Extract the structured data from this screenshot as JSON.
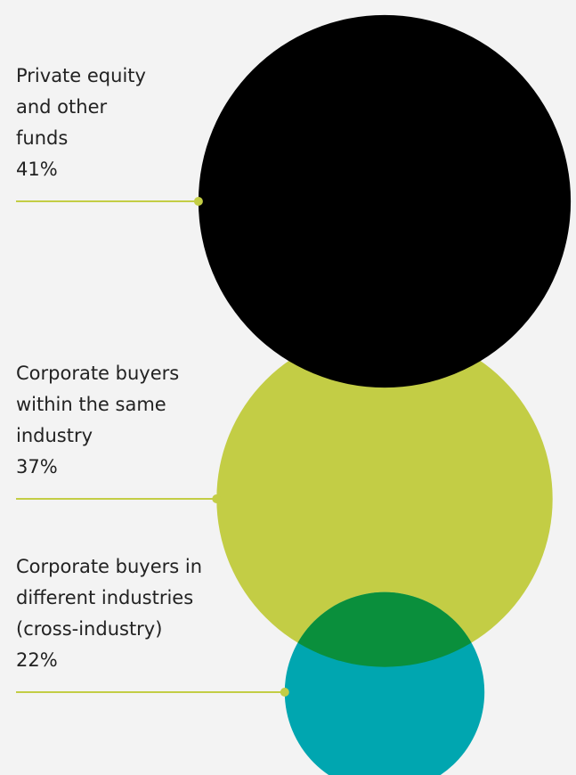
{
  "chart_data": {
    "type": "bubble",
    "categories": [
      [
        "Private equity",
        "and other",
        "funds"
      ],
      [
        "Corporate buyers",
        "within the same",
        "industry"
      ],
      [
        "Corporate buyers in",
        "different industries",
        "(cross-industry)"
      ]
    ],
    "values": [
      41,
      37,
      22
    ],
    "value_labels": [
      "41%",
      "37%",
      "22%"
    ],
    "colors": [
      "#000000",
      "#c3cd45",
      "#00a6b0"
    ],
    "overlap_color": "#0a8f3c",
    "leader_color": "#c3cd45"
  }
}
